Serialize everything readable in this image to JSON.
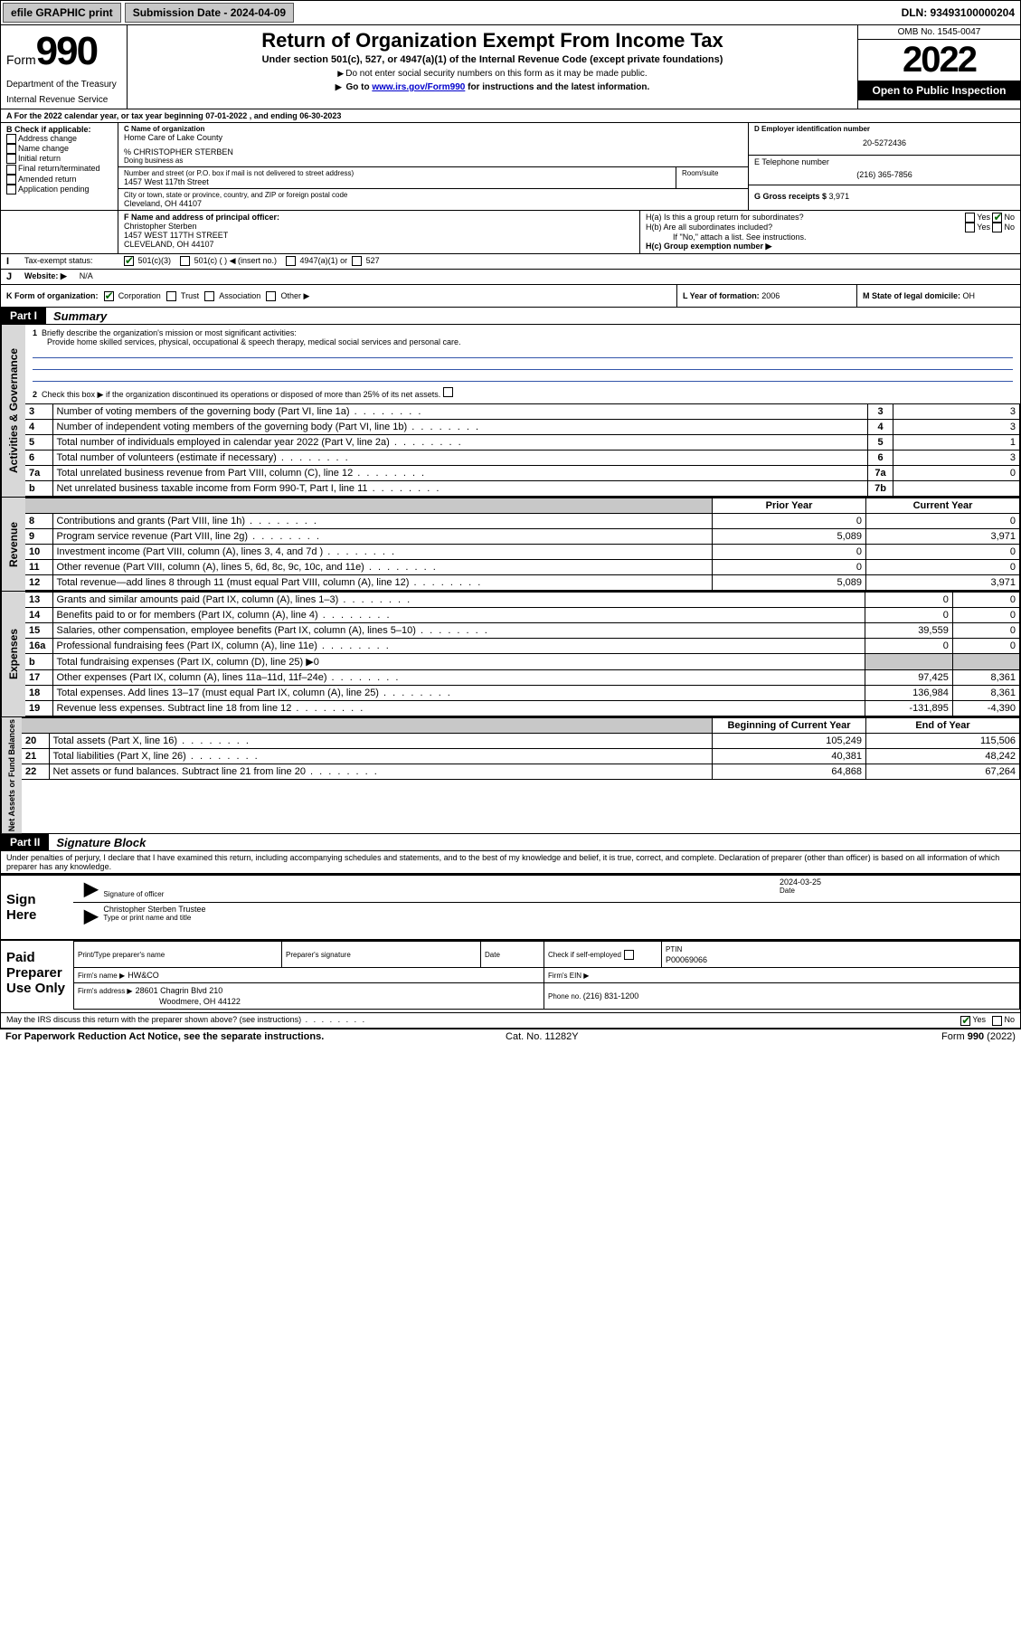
{
  "topbar": {
    "efile": "efile GRAPHIC print",
    "submission": "Submission Date - 2024-04-09",
    "dln": "DLN: 93493100000204"
  },
  "header": {
    "form_word": "Form",
    "form_num": "990",
    "dept": "Department of the Treasury",
    "irs": "Internal Revenue Service",
    "title": "Return of Organization Exempt From Income Tax",
    "sub1": "Under section 501(c), 527, or 4947(a)(1) of the Internal Revenue Code (except private foundations)",
    "sub2": "Do not enter social security numbers on this form as it may be made public.",
    "sub3_a": "Go to ",
    "sub3_link": "www.irs.gov/Form990",
    "sub3_b": " for instructions and the latest information.",
    "omb": "OMB No. 1545-0047",
    "year": "2022",
    "inspect": "Open to Public Inspection"
  },
  "lineA": {
    "prefix": "A For the 2022 calendar year, or tax year beginning ",
    "beg": "07-01-2022",
    "mid": " , and ending ",
    "end": "06-30-2023"
  },
  "B": {
    "label": "B Check if applicable:",
    "opts": [
      "Address change",
      "Name change",
      "Initial return",
      "Final return/terminated",
      "Amended return",
      "Application pending"
    ]
  },
  "C": {
    "label": "C Name of organization",
    "name": "Home Care of Lake County",
    "care_lbl": "% CHRISTOPHER STERBEN",
    "dba_lbl": "Doing business as",
    "addr_lbl": "Number and street (or P.O. box if mail is not delivered to street address)",
    "room_lbl": "Room/suite",
    "addr": "1457 West 117th Street",
    "city_lbl": "City or town, state or province, country, and ZIP or foreign postal code",
    "city": "Cleveland, OH  44107"
  },
  "D": {
    "label": "D Employer identification number",
    "val": "20-5272436"
  },
  "E": {
    "label": "E Telephone number",
    "val": "(216) 365-7856"
  },
  "G": {
    "label": "G Gross receipts $ ",
    "val": "3,971"
  },
  "F": {
    "label": "F Name and address of principal officer:",
    "name": "Christopher Sterben",
    "addr1": "1457 WEST 117TH STREET",
    "addr2": "CLEVELAND, OH  44107"
  },
  "H": {
    "a": "H(a)  Is this a group return for subordinates?",
    "b": "H(b)  Are all subordinates included?",
    "note": "If \"No,\" attach a list. See instructions.",
    "c": "H(c)  Group exemption number ▶",
    "yes": "Yes",
    "no": "No"
  },
  "I": {
    "label": "Tax-exempt status:",
    "c3": "501(c)(3)",
    "c": "501(c) (   ) ◀ (insert no.)",
    "a1": "4947(a)(1) or",
    "s527": "527"
  },
  "J": {
    "label": "Website: ▶",
    "val": "N/A"
  },
  "K": {
    "label": "K Form of organization:",
    "corp": "Corporation",
    "trust": "Trust",
    "assoc": "Association",
    "other": "Other ▶"
  },
  "L": {
    "label": "L Year of formation: ",
    "val": "2006"
  },
  "M": {
    "label": "M State of legal domicile: ",
    "val": "OH"
  },
  "partI": {
    "num": "Part I",
    "title": "Summary"
  },
  "summary": {
    "l1a": "Briefly describe the organization's mission or most significant activities:",
    "l1b": "Provide home skilled services, physical, occupational & speech therapy, medical social services and personal care.",
    "l2": "Check this box ▶      if the organization discontinued its operations or disposed of more than 25% of its net assets.",
    "rows_gov": [
      {
        "n": "3",
        "t": "Number of voting members of the governing body (Part VI, line 1a)",
        "box": "3",
        "v": "3"
      },
      {
        "n": "4",
        "t": "Number of independent voting members of the governing body (Part VI, line 1b)",
        "box": "4",
        "v": "3"
      },
      {
        "n": "5",
        "t": "Total number of individuals employed in calendar year 2022 (Part V, line 2a)",
        "box": "5",
        "v": "1"
      },
      {
        "n": "6",
        "t": "Total number of volunteers (estimate if necessary)",
        "box": "6",
        "v": "3"
      },
      {
        "n": "7a",
        "t": "Total unrelated business revenue from Part VIII, column (C), line 12",
        "box": "7a",
        "v": "0"
      },
      {
        "n": "b",
        "t": "Net unrelated business taxable income from Form 990-T, Part I, line 11",
        "box": "7b",
        "v": ""
      }
    ],
    "col_prior": "Prior Year",
    "col_current": "Current Year",
    "rev": [
      {
        "n": "8",
        "t": "Contributions and grants (Part VIII, line 1h)",
        "p": "0",
        "c": "0"
      },
      {
        "n": "9",
        "t": "Program service revenue (Part VIII, line 2g)",
        "p": "5,089",
        "c": "3,971"
      },
      {
        "n": "10",
        "t": "Investment income (Part VIII, column (A), lines 3, 4, and 7d )",
        "p": "0",
        "c": "0"
      },
      {
        "n": "11",
        "t": "Other revenue (Part VIII, column (A), lines 5, 6d, 8c, 9c, 10c, and 11e)",
        "p": "0",
        "c": "0"
      },
      {
        "n": "12",
        "t": "Total revenue—add lines 8 through 11 (must equal Part VIII, column (A), line 12)",
        "p": "5,089",
        "c": "3,971"
      }
    ],
    "exp": [
      {
        "n": "13",
        "t": "Grants and similar amounts paid (Part IX, column (A), lines 1–3)",
        "p": "0",
        "c": "0"
      },
      {
        "n": "14",
        "t": "Benefits paid to or for members (Part IX, column (A), line 4)",
        "p": "0",
        "c": "0"
      },
      {
        "n": "15",
        "t": "Salaries, other compensation, employee benefits (Part IX, column (A), lines 5–10)",
        "p": "39,559",
        "c": "0"
      },
      {
        "n": "16a",
        "t": "Professional fundraising fees (Part IX, column (A), line 11e)",
        "p": "0",
        "c": "0"
      },
      {
        "n": "b",
        "t": "Total fundraising expenses (Part IX, column (D), line 25) ▶0",
        "p": "",
        "c": "",
        "shade": true
      },
      {
        "n": "17",
        "t": "Other expenses (Part IX, column (A), lines 11a–11d, 11f–24e)",
        "p": "97,425",
        "c": "8,361"
      },
      {
        "n": "18",
        "t": "Total expenses. Add lines 13–17 (must equal Part IX, column (A), line 25)",
        "p": "136,984",
        "c": "8,361"
      },
      {
        "n": "19",
        "t": "Revenue less expenses. Subtract line 18 from line 12",
        "p": "-131,895",
        "c": "-4,390"
      }
    ],
    "col_beg": "Beginning of Current Year",
    "col_end": "End of Year",
    "net": [
      {
        "n": "20",
        "t": "Total assets (Part X, line 16)",
        "p": "105,249",
        "c": "115,506"
      },
      {
        "n": "21",
        "t": "Total liabilities (Part X, line 26)",
        "p": "40,381",
        "c": "48,242"
      },
      {
        "n": "22",
        "t": "Net assets or fund balances. Subtract line 21 from line 20",
        "p": "64,868",
        "c": "67,264"
      }
    ],
    "tabs": {
      "gov": "Activities & Governance",
      "rev": "Revenue",
      "exp": "Expenses",
      "net": "Net Assets or Fund Balances"
    }
  },
  "partII": {
    "num": "Part II",
    "title": "Signature Block"
  },
  "decl": "Under penalties of perjury, I declare that I have examined this return, including accompanying schedules and statements, and to the best of my knowledge and belief, it is true, correct, and complete. Declaration of preparer (other than officer) is based on all information of which preparer has any knowledge.",
  "sign": {
    "here": "Sign Here",
    "sig_lbl": "Signature of officer",
    "date_lbl": "Date",
    "date": "2024-03-25",
    "name": "Christopher Sterben  Trustee",
    "name_lbl": "Type or print name and title"
  },
  "paid": {
    "label": "Paid Preparer Use Only",
    "h1": "Print/Type preparer's name",
    "h2": "Preparer's signature",
    "h3": "Date",
    "check": "Check        if self-employed",
    "ptin_lbl": "PTIN",
    "ptin": "P00069066",
    "firm_lbl": "Firm's name   ▶",
    "firm": "HW&CO",
    "ein_lbl": "Firm's EIN ▶",
    "addr_lbl": "Firm's address ▶",
    "addr": "28601 Chagrin Blvd 210",
    "addr2": "Woodmere, OH  44122",
    "phone_lbl": "Phone no. ",
    "phone": "(216) 831-1200"
  },
  "discuss": {
    "t": "May the IRS discuss this return with the preparer shown above? (see instructions)",
    "yes": "Yes",
    "no": "No"
  },
  "footer": {
    "l": "For Paperwork Reduction Act Notice, see the separate instructions.",
    "m": "Cat. No. 11282Y",
    "r": "Form 990 (2022)"
  },
  "colors": {
    "link": "#0000cc",
    "shade": "#c8c8c8",
    "rule": "#3355aa",
    "check": "#006600"
  }
}
